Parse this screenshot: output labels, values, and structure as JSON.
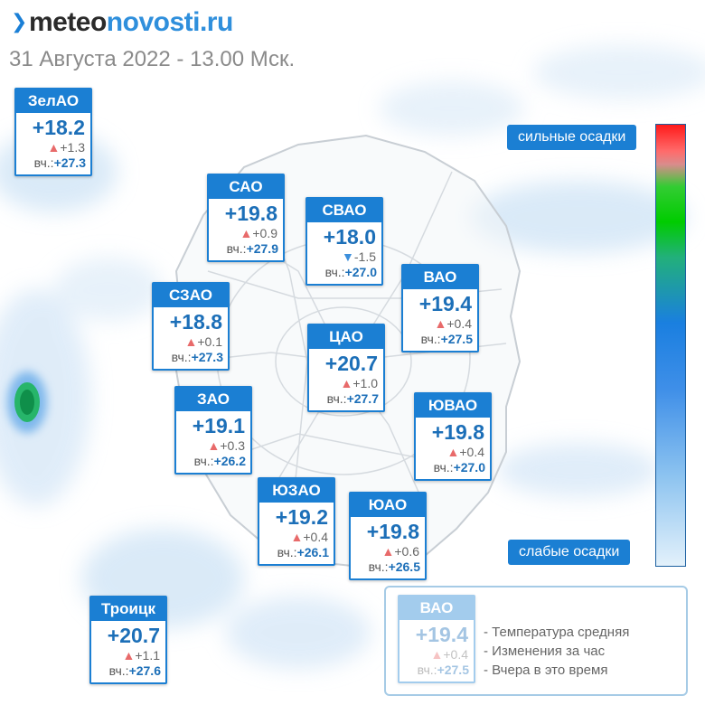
{
  "header": {
    "logo_part1": "meteo",
    "logo_part2": "novosti.ru",
    "subtitle": "31 Августа 2022 - 13.00 Мск."
  },
  "districts": [
    {
      "name": "ЗелАО",
      "temp": "+18.2",
      "change": "+1.3",
      "trend": "up",
      "yest_label": "вч.:",
      "yest": "+27.3"
    },
    {
      "name": "САО",
      "temp": "+19.8",
      "change": "+0.9",
      "trend": "up",
      "yest_label": "вч.:",
      "yest": "+27.9"
    },
    {
      "name": "СВАО",
      "temp": "+18.0",
      "change": "-1.5",
      "trend": "down",
      "yest_label": "вч.:",
      "yest": "+27.0"
    },
    {
      "name": "ВАО",
      "temp": "+19.4",
      "change": "+0.4",
      "trend": "up",
      "yest_label": "вч.:",
      "yest": "+27.5"
    },
    {
      "name": "СЗАО",
      "temp": "+18.8",
      "change": "+0.1",
      "trend": "up",
      "yest_label": "вч.:",
      "yest": "+27.3"
    },
    {
      "name": "ЦАО",
      "temp": "+20.7",
      "change": "+1.0",
      "trend": "up",
      "yest_label": "вч.:",
      "yest": "+27.7"
    },
    {
      "name": "ЗАО",
      "temp": "+19.1",
      "change": "+0.3",
      "trend": "up",
      "yest_label": "вч.:",
      "yest": "+26.2"
    },
    {
      "name": "ЮВАО",
      "temp": "+19.8",
      "change": "+0.4",
      "trend": "up",
      "yest_label": "вч.:",
      "yest": "+27.0"
    },
    {
      "name": "ЮЗАО",
      "temp": "+19.2",
      "change": "+0.4",
      "trend": "up",
      "yest_label": "вч.:",
      "yest": "+26.1"
    },
    {
      "name": "ЮАО",
      "temp": "+19.8",
      "change": "+0.6",
      "trend": "up",
      "yest_label": "вч.:",
      "yest": "+26.5"
    },
    {
      "name": "Троицк",
      "temp": "+20.7",
      "change": "+1.1",
      "trend": "up",
      "yest_label": "вч.:",
      "yest": "+27.6"
    }
  ],
  "precip_legend": {
    "heavy_label": "сильные осадки",
    "light_label": "слабые осадки"
  },
  "explanation": {
    "sample": {
      "name": "ВАО",
      "temp": "+19.4",
      "change": "+0.4",
      "trend": "up",
      "yest_label": "вч.:",
      "yest": "+27.5"
    },
    "lines": [
      "- Температура средняя",
      "- Изменения за час",
      "- Вчера в это время"
    ]
  },
  "colors": {
    "card_header": "#1b7fd3",
    "temp_text": "#1c6fb8",
    "trend_up": "#e86a6a",
    "trend_down": "#3c8fdc"
  }
}
